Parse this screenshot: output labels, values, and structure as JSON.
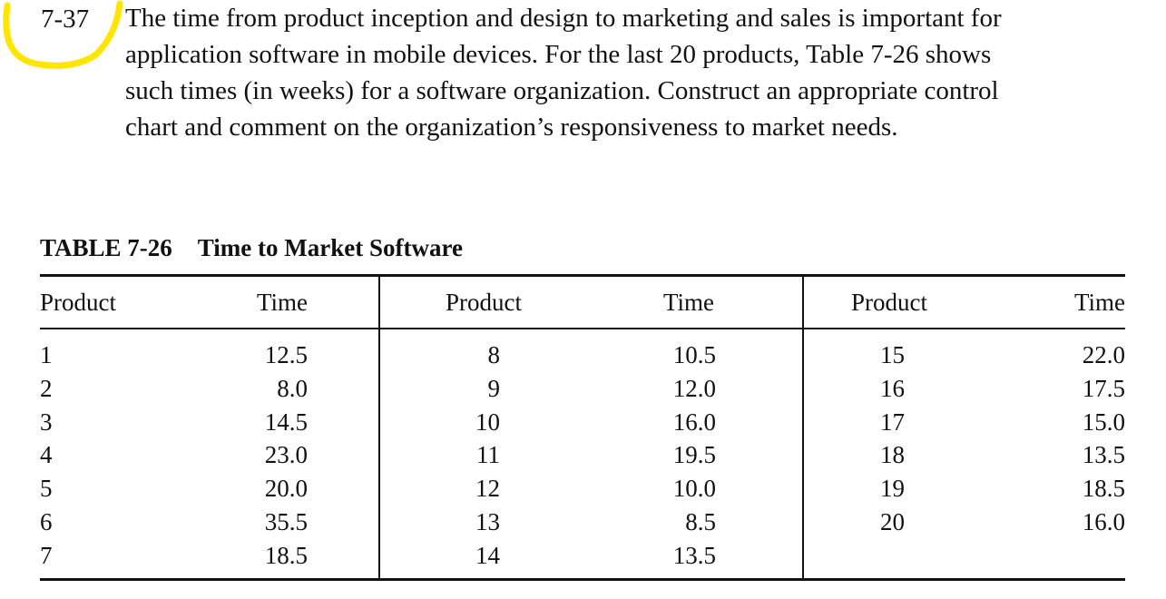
{
  "problem": {
    "number": "7-37",
    "lines": [
      "The time from product inception and design to marketing and sales is important for",
      "application software in mobile devices. For the last 20 products, Table 7-26 shows",
      "such times (in weeks) for a software organization. Construct an appropriate control",
      "chart and comment on the organization’s responsiveness to market needs."
    ],
    "highlight_color": "#FFE500"
  },
  "table": {
    "label": "TABLE 7-26",
    "title": "Time to Market Software",
    "headers": [
      "Product",
      "Time",
      "Product",
      "Time",
      "Product",
      "Time"
    ],
    "groups": [
      {
        "rows": [
          {
            "product": "1",
            "time": "12.5"
          },
          {
            "product": "2",
            "time": "8.0"
          },
          {
            "product": "3",
            "time": "14.5"
          },
          {
            "product": "4",
            "time": "23.0"
          },
          {
            "product": "5",
            "time": "20.0"
          },
          {
            "product": "6",
            "time": "35.5"
          },
          {
            "product": "7",
            "time": "18.5"
          }
        ]
      },
      {
        "rows": [
          {
            "product": "8",
            "time": "10.5"
          },
          {
            "product": "9",
            "time": "12.0"
          },
          {
            "product": "10",
            "time": "16.0"
          },
          {
            "product": "11",
            "time": "19.5"
          },
          {
            "product": "12",
            "time": "10.0"
          },
          {
            "product": "13",
            "time": "8.5"
          },
          {
            "product": "14",
            "time": "13.5"
          }
        ]
      },
      {
        "rows": [
          {
            "product": "15",
            "time": "22.0"
          },
          {
            "product": "16",
            "time": "17.5"
          },
          {
            "product": "17",
            "time": "15.0"
          },
          {
            "product": "18",
            "time": "13.5"
          },
          {
            "product": "19",
            "time": "18.5"
          },
          {
            "product": "20",
            "time": "16.0"
          }
        ]
      }
    ]
  }
}
